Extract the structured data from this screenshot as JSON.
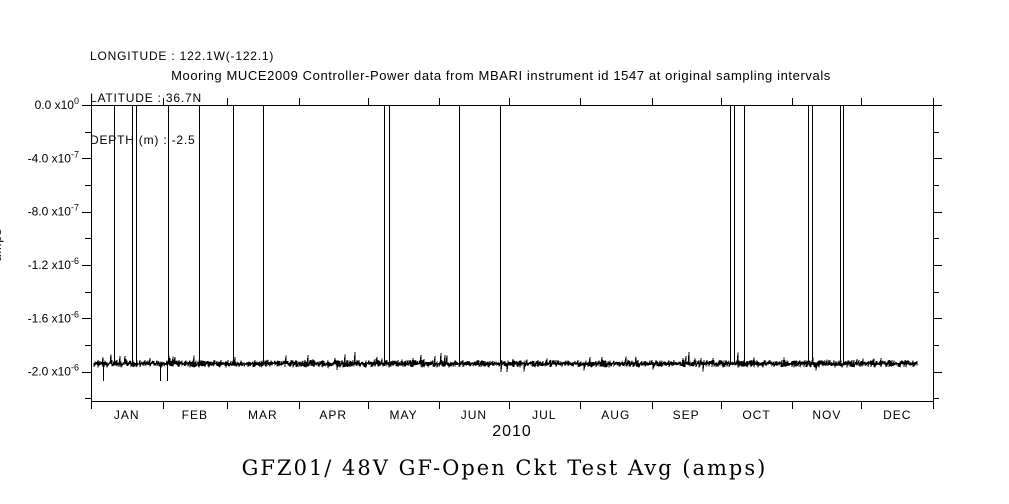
{
  "header": {
    "lines": [
      "LONGITUDE : 122.1W(-122.1)",
      "LATITUDE : 36.7N",
      "DEPTH (m) : -2.5"
    ]
  },
  "chart_data": {
    "type": "line",
    "title": "Mooring MUCE2009 Controller-Power data from MBARI instrument id 1547 at original sampling intervals",
    "bottom_title": "GFZ01/ 48V GF-Open Ckt Test Avg (amps)",
    "ylabel": "amps",
    "year_label": "2010",
    "grid": false,
    "legend": "none",
    "x_axis": {
      "kind": "time-months",
      "month_labels": [
        "JAN",
        "FEB",
        "MAR",
        "APR",
        "MAY",
        "JUN",
        "JUL",
        "AUG",
        "SEP",
        "OCT",
        "NOV",
        "DEC"
      ],
      "month_start_days": [
        0,
        31,
        59,
        90,
        120,
        151,
        181,
        212,
        243,
        273,
        304,
        334,
        365
      ],
      "range_days": [
        0,
        365
      ]
    },
    "y_axis": {
      "ylim": [
        -2.22e-06,
        0
      ],
      "major_ticks": [
        {
          "value": 0,
          "mantissa": "0.0",
          "exponent": "0"
        },
        {
          "value": -4e-07,
          "mantissa": "-4.0",
          "exponent": "-7"
        },
        {
          "value": -8e-07,
          "mantissa": "-8.0",
          "exponent": "-7"
        },
        {
          "value": -1.2e-06,
          "mantissa": "-1.2",
          "exponent": "-6"
        },
        {
          "value": -1.6e-06,
          "mantissa": "-1.6",
          "exponent": "-6"
        },
        {
          "value": -2e-06,
          "mantissa": "-2.0",
          "exponent": "-6"
        }
      ],
      "times_symbol": "x10",
      "minor_tick_values": [
        -2e-07,
        -6e-07,
        -1e-06,
        -1.4e-06,
        -1.8e-06,
        -2.2e-06
      ]
    },
    "series": [
      {
        "name": "48V GF-Open Ckt Test Avg",
        "units": "amps",
        "baseline_value": -1.94e-06,
        "noise_amplitude": 2.8e-08,
        "data_start_day": 1.4,
        "data_end_day": 358,
        "spike_to_value": 0,
        "spike_days": [
          10.1,
          17.6,
          19.4,
          33.5,
          47.0,
          61.4,
          74.4,
          127.0,
          129.3,
          159.5,
          177.3,
          277.0,
          278.7,
          283.1,
          310.8,
          312.5,
          324.7,
          326.0
        ],
        "down_spike_days": [
          5.2,
          30.0,
          33.0
        ],
        "down_spike_value": -2.07e-06
      }
    ],
    "colors": {
      "line": "#000000",
      "background": "#ffffff",
      "text": "#000000"
    }
  }
}
